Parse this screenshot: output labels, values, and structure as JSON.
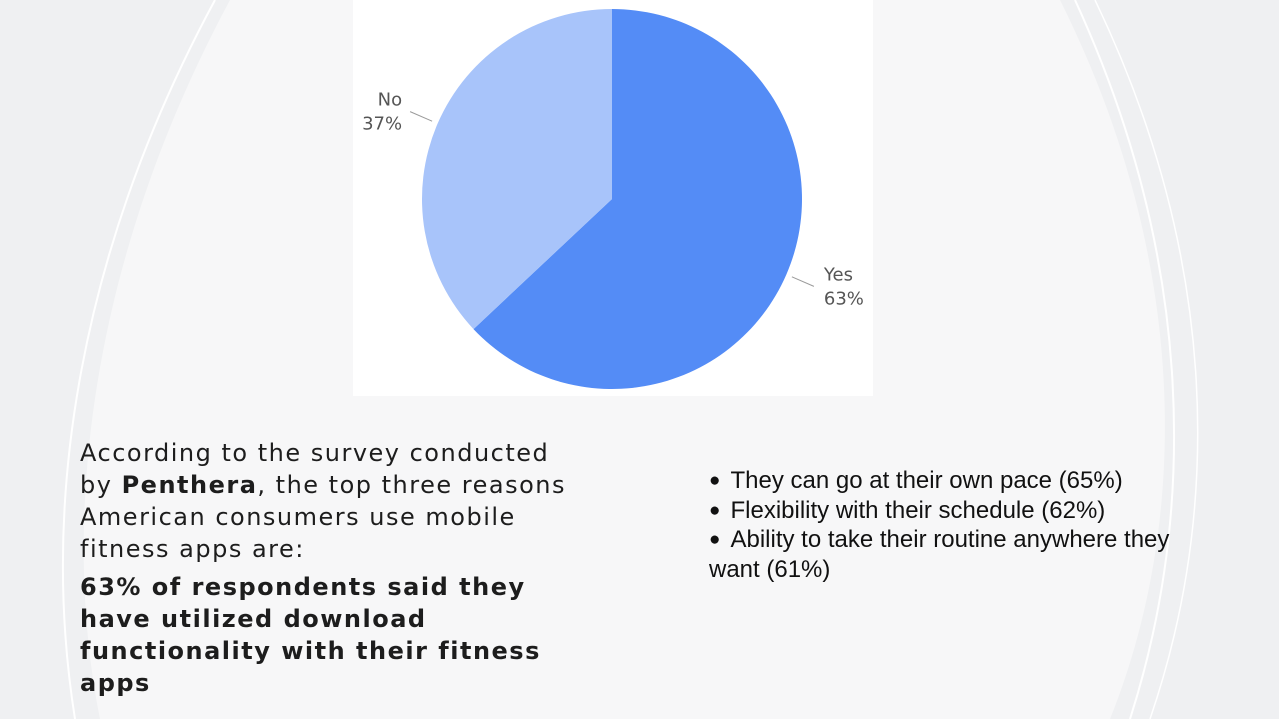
{
  "chart_data": {
    "type": "pie",
    "slices": [
      {
        "label": "Yes",
        "value": 63,
        "percent_label": "63%",
        "color": "#548cf6"
      },
      {
        "label": "No",
        "value": 37,
        "percent_label": "37%",
        "color": "#a8c4fa"
      }
    ],
    "start_angle_deg": 0,
    "direction": "clockwise",
    "background": "#ffffff"
  },
  "intro": {
    "text_before": "According to the survey conducted by ",
    "company": "Penthera",
    "text_after": ", the top three reasons American consumers use mobile fitness apps are:"
  },
  "stat_text": "63% of respondents said they have utilized download functionality with their fitness apps",
  "reasons": {
    "bullet": "●",
    "items": [
      "They can go at their own pace (65%)",
      "Flexibility with their schedule (62%)",
      "Ability to take their routine anywhere they want (61%)"
    ]
  },
  "colors": {
    "page_background": "#eff0f2",
    "panel_background": "#f7f7f8",
    "text": "#1d1d1d"
  }
}
